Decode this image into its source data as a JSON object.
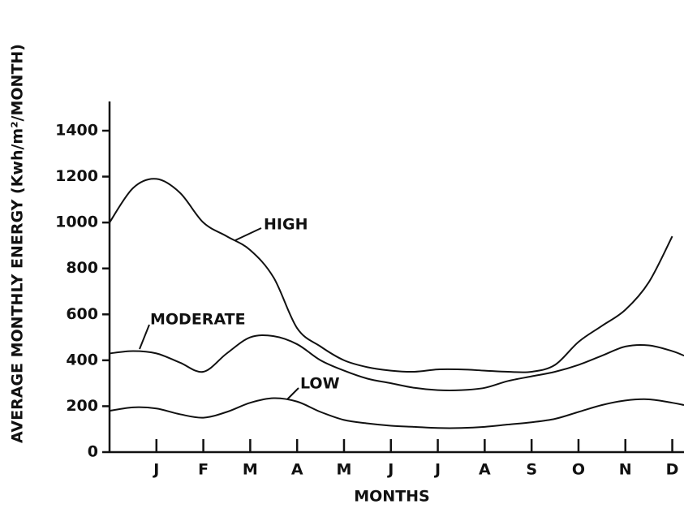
{
  "chart_data": {
    "type": "line",
    "xlabel": "MONTHS",
    "ylabel": "AVERAGE MONTHLY ENERGY (Kwh/m²/MONTH)",
    "x": [
      0,
      0.5,
      1,
      1.5,
      2,
      2.5,
      3,
      3.5,
      4,
      4.5,
      5,
      5.5,
      6,
      6.5,
      7,
      7.5,
      8,
      8.5,
      9,
      9.5,
      10,
      10.5,
      11,
      11.5,
      12,
      12.25
    ],
    "xlim": [
      0,
      12.25
    ],
    "xticks": [
      {
        "value": 1,
        "label": "J"
      },
      {
        "value": 2,
        "label": "F"
      },
      {
        "value": 3,
        "label": "M"
      },
      {
        "value": 4,
        "label": "A"
      },
      {
        "value": 5,
        "label": "M"
      },
      {
        "value": 6,
        "label": "J"
      },
      {
        "value": 7,
        "label": "J"
      },
      {
        "value": 8,
        "label": "A"
      },
      {
        "value": 9,
        "label": "S"
      },
      {
        "value": 10,
        "label": "O"
      },
      {
        "value": 11,
        "label": "N"
      },
      {
        "value": 12,
        "label": "D"
      }
    ],
    "ylim": [
      0,
      1400
    ],
    "yticks": [
      0,
      200,
      400,
      600,
      800,
      1000,
      1200,
      1400
    ],
    "series": [
      {
        "name": "HIGH",
        "color": "#111111",
        "values": [
          1000,
          1150,
          1190,
          1130,
          1000,
          940,
          880,
          760,
          540,
          460,
          400,
          370,
          355,
          350,
          360,
          360,
          355,
          350,
          350,
          380,
          480,
          550,
          620,
          740,
          940,
          null
        ]
      },
      {
        "name": "MODERATE",
        "color": "#111111",
        "values": [
          430,
          440,
          430,
          390,
          350,
          430,
          500,
          505,
          470,
          400,
          355,
          320,
          300,
          280,
          270,
          270,
          280,
          310,
          330,
          350,
          380,
          420,
          460,
          465,
          440,
          420
        ]
      },
      {
        "name": "LOW",
        "color": "#111111",
        "values": [
          180,
          195,
          190,
          165,
          150,
          175,
          215,
          235,
          220,
          175,
          140,
          125,
          115,
          110,
          105,
          105,
          110,
          120,
          130,
          145,
          175,
          205,
          225,
          230,
          215,
          205
        ]
      }
    ]
  }
}
